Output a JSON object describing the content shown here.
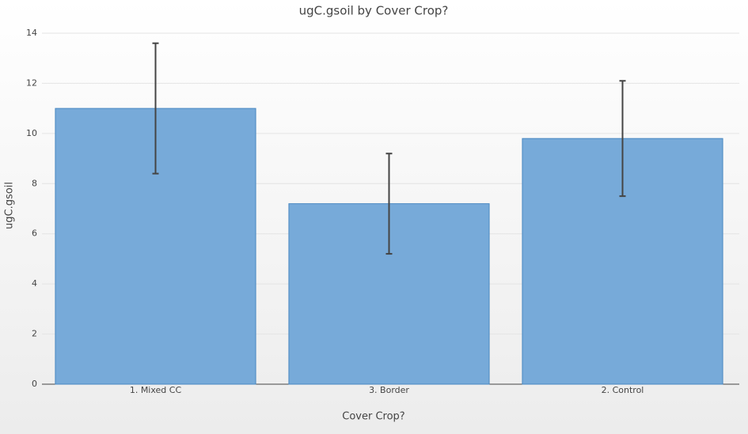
{
  "chart_data": {
    "type": "bar",
    "title": "ugC.gsoil by Cover Crop?",
    "x_label": "Cover Crop?",
    "y_label": "ugC.gsoil",
    "categories": [
      "1. Mixed CC",
      "3. Border",
      "2. Control"
    ],
    "values": [
      11.0,
      7.2,
      9.8
    ],
    "errors": [
      2.6,
      2.0,
      2.3
    ],
    "color": "#77aad9",
    "edge_color": "#4a88c2",
    "error_color": "#444444",
    "ylim": [
      0,
      14
    ],
    "yticks": [
      0,
      2,
      4,
      6,
      8,
      10,
      12,
      14
    ],
    "grid": true
  }
}
